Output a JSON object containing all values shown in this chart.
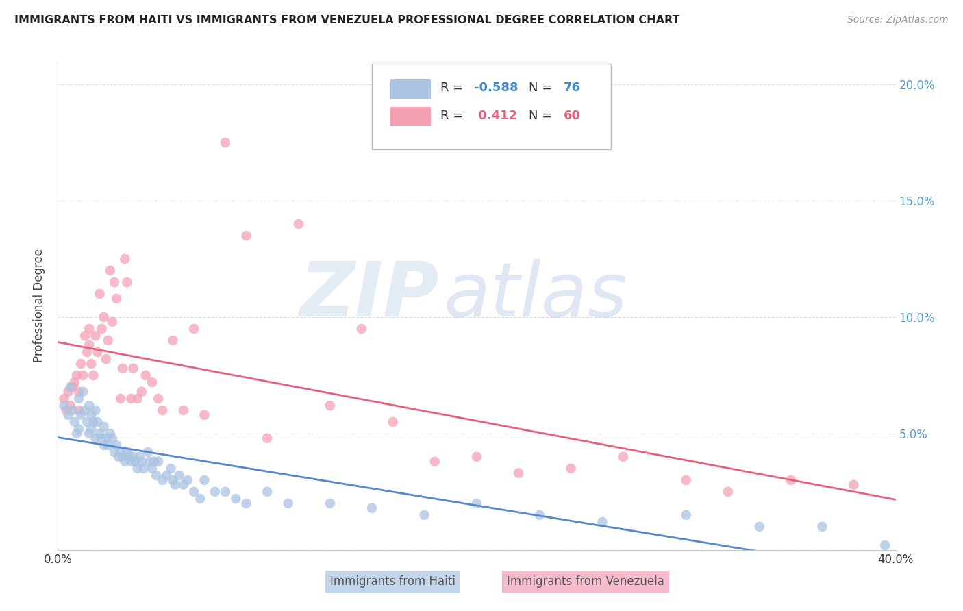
{
  "title": "IMMIGRANTS FROM HAITI VS IMMIGRANTS FROM VENEZUELA PROFESSIONAL DEGREE CORRELATION CHART",
  "source": "Source: ZipAtlas.com",
  "ylabel": "Professional Degree",
  "xlim": [
    0.0,
    0.4
  ],
  "ylim": [
    0.0,
    0.21
  ],
  "haiti_color": "#aac4e2",
  "venezuela_color": "#f5a0b5",
  "haiti_line_color": "#5588cc",
  "venezuela_line_color": "#e8607a",
  "watermark_zip": "ZIP",
  "watermark_atlas": "atlas",
  "background_color": "#ffffff",
  "grid_color": "#dddddd",
  "haiti_x": [
    0.003,
    0.005,
    0.006,
    0.007,
    0.008,
    0.009,
    0.01,
    0.01,
    0.011,
    0.012,
    0.013,
    0.014,
    0.015,
    0.015,
    0.016,
    0.016,
    0.017,
    0.018,
    0.018,
    0.019,
    0.02,
    0.021,
    0.022,
    0.022,
    0.023,
    0.024,
    0.025,
    0.026,
    0.027,
    0.028,
    0.029,
    0.03,
    0.031,
    0.032,
    0.033,
    0.034,
    0.035,
    0.036,
    0.037,
    0.038,
    0.039,
    0.04,
    0.041,
    0.043,
    0.044,
    0.045,
    0.046,
    0.047,
    0.048,
    0.05,
    0.052,
    0.054,
    0.055,
    0.056,
    0.058,
    0.06,
    0.062,
    0.065,
    0.068,
    0.07,
    0.075,
    0.08,
    0.085,
    0.09,
    0.1,
    0.11,
    0.13,
    0.15,
    0.175,
    0.2,
    0.23,
    0.26,
    0.3,
    0.335,
    0.365,
    0.395
  ],
  "haiti_y": [
    0.062,
    0.058,
    0.07,
    0.06,
    0.055,
    0.05,
    0.065,
    0.052,
    0.058,
    0.068,
    0.06,
    0.055,
    0.062,
    0.05,
    0.058,
    0.052,
    0.055,
    0.06,
    0.048,
    0.055,
    0.05,
    0.048,
    0.053,
    0.045,
    0.048,
    0.045,
    0.05,
    0.048,
    0.042,
    0.045,
    0.04,
    0.042,
    0.04,
    0.038,
    0.042,
    0.04,
    0.038,
    0.04,
    0.038,
    0.035,
    0.04,
    0.038,
    0.035,
    0.042,
    0.038,
    0.035,
    0.038,
    0.032,
    0.038,
    0.03,
    0.032,
    0.035,
    0.03,
    0.028,
    0.032,
    0.028,
    0.03,
    0.025,
    0.022,
    0.03,
    0.025,
    0.025,
    0.022,
    0.02,
    0.025,
    0.02,
    0.02,
    0.018,
    0.015,
    0.02,
    0.015,
    0.012,
    0.015,
    0.01,
    0.01,
    0.002
  ],
  "venezuela_x": [
    0.003,
    0.004,
    0.005,
    0.006,
    0.007,
    0.008,
    0.009,
    0.01,
    0.01,
    0.011,
    0.012,
    0.013,
    0.014,
    0.015,
    0.015,
    0.016,
    0.017,
    0.018,
    0.019,
    0.02,
    0.021,
    0.022,
    0.023,
    0.024,
    0.025,
    0.026,
    0.027,
    0.028,
    0.03,
    0.031,
    0.032,
    0.033,
    0.035,
    0.036,
    0.038,
    0.04,
    0.042,
    0.045,
    0.048,
    0.05,
    0.055,
    0.06,
    0.065,
    0.07,
    0.08,
    0.09,
    0.1,
    0.115,
    0.13,
    0.145,
    0.16,
    0.18,
    0.2,
    0.22,
    0.245,
    0.27,
    0.3,
    0.32,
    0.35,
    0.38
  ],
  "venezuela_y": [
    0.065,
    0.06,
    0.068,
    0.062,
    0.07,
    0.072,
    0.075,
    0.068,
    0.06,
    0.08,
    0.075,
    0.092,
    0.085,
    0.095,
    0.088,
    0.08,
    0.075,
    0.092,
    0.085,
    0.11,
    0.095,
    0.1,
    0.082,
    0.09,
    0.12,
    0.098,
    0.115,
    0.108,
    0.065,
    0.078,
    0.125,
    0.115,
    0.065,
    0.078,
    0.065,
    0.068,
    0.075,
    0.072,
    0.065,
    0.06,
    0.09,
    0.06,
    0.095,
    0.058,
    0.175,
    0.135,
    0.048,
    0.14,
    0.062,
    0.095,
    0.055,
    0.038,
    0.04,
    0.033,
    0.035,
    0.04,
    0.03,
    0.025,
    0.03,
    0.028
  ]
}
